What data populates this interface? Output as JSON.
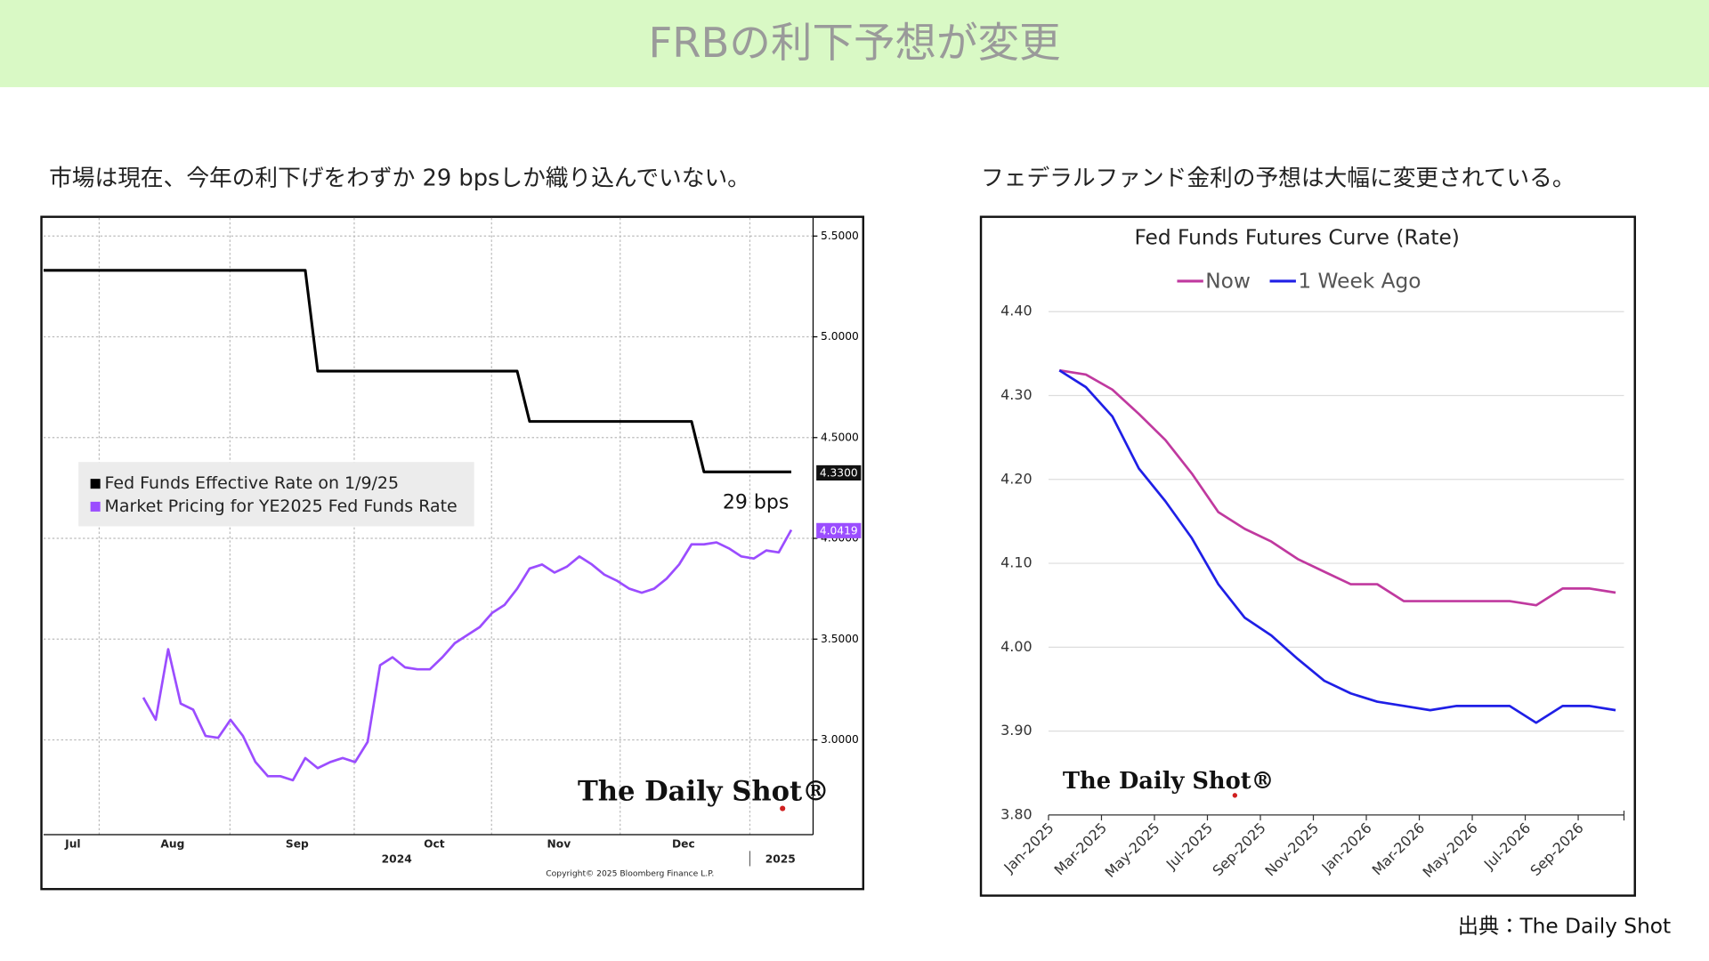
{
  "title": "FRBの利下予想が変更",
  "subtitles": [
    "市場は現在、今年の利下げをわずか 29 bpsしか織り込んでいない。",
    "フェデラルファンド金利の予想は大幅に変更されている。"
  ],
  "source": "出典：The Daily Shot",
  "chart_data": [
    {
      "type": "line",
      "categories": [
        null,
        null,
        "Jul",
        null,
        null,
        null,
        null,
        null,
        null,
        null,
        "Aug",
        null,
        null,
        null,
        null,
        null,
        null,
        null,
        null,
        null,
        "Sep",
        null,
        null,
        null,
        null,
        null,
        null,
        null,
        null,
        null,
        null,
        "Oct",
        null,
        null,
        null,
        null,
        null,
        null,
        null,
        null,
        null,
        "Nov",
        null,
        null,
        null,
        null,
        null,
        null,
        null,
        null,
        null,
        "Dec",
        null,
        null,
        null,
        null,
        null,
        null,
        null,
        null,
        null
      ],
      "series": [
        {
          "name": "Fed Funds Effective Rate on 1/9/25",
          "color": "#000000",
          "values": [
            5.33,
            5.33,
            5.33,
            5.33,
            5.33,
            5.33,
            5.33,
            5.33,
            5.33,
            5.33,
            5.33,
            5.33,
            5.33,
            5.33,
            5.33,
            5.33,
            5.33,
            5.33,
            5.33,
            5.33,
            5.33,
            5.33,
            4.83,
            4.83,
            4.83,
            4.83,
            4.83,
            4.83,
            4.83,
            4.83,
            4.83,
            4.83,
            4.83,
            4.83,
            4.83,
            4.83,
            4.83,
            4.83,
            4.83,
            4.58,
            4.58,
            4.58,
            4.58,
            4.58,
            4.58,
            4.58,
            4.58,
            4.58,
            4.58,
            4.58,
            4.58,
            4.58,
            4.58,
            4.33,
            4.33,
            4.33,
            4.33,
            4.33,
            4.33,
            4.33,
            4.33
          ]
        },
        {
          "name": "Market Pricing for YE2025 Fed Funds Rate",
          "color": "#9b4dff",
          "values": [
            null,
            null,
            null,
            null,
            null,
            null,
            null,
            null,
            3.21,
            3.1,
            3.45,
            3.18,
            3.15,
            3.02,
            3.01,
            3.1,
            3.02,
            2.89,
            2.82,
            2.82,
            2.8,
            2.91,
            2.86,
            2.89,
            2.91,
            2.89,
            2.99,
            3.37,
            3.41,
            3.36,
            3.35,
            3.35,
            3.41,
            3.48,
            3.52,
            3.56,
            3.63,
            3.67,
            3.75,
            3.85,
            3.87,
            3.83,
            3.86,
            3.91,
            3.87,
            3.82,
            3.79,
            3.75,
            3.73,
            3.75,
            3.8,
            3.87,
            3.97,
            3.97,
            3.98,
            3.95,
            3.91,
            3.9,
            3.94,
            3.93,
            4.0419
          ]
        }
      ],
      "ylim": [
        2.53,
        5.59
      ],
      "yticks": [
        {
          "value": 3.0,
          "label": "3.0000"
        },
        {
          "value": 3.5,
          "label": "3.5000"
        },
        {
          "value": 4.0,
          "label": "4.0000"
        },
        {
          "value": 4.5,
          "label": "4.5000"
        },
        {
          "value": 5.0,
          "label": "5.0000"
        },
        {
          "value": 5.5,
          "label": "5.5000"
        }
      ],
      "y_axis_side": "right",
      "grid": true,
      "annotations": [
        "29 bps",
        "4.3300",
        "4.0419",
        "2024",
        "2025",
        "Copyright© 2025 Bloomberg Finance L.P.",
        "The Daily Shot®"
      ]
    },
    {
      "type": "line",
      "title": "Fed Funds Futures Curve (Rate)",
      "categories": [
        "Jan-2025",
        null,
        "Mar-2025",
        null,
        "May-2025",
        null,
        "Jul-2025",
        null,
        "Sep-2025",
        null,
        "Nov-2025",
        null,
        "Jan-2026",
        null,
        "Mar-2026",
        null,
        "May-2026",
        null,
        "Jul-2026",
        null,
        "Sep-2026",
        null
      ],
      "series": [
        {
          "name": "Now",
          "color": "#c0399f",
          "values": [
            4.33,
            4.325,
            4.307,
            4.278,
            4.247,
            4.207,
            4.161,
            4.141,
            4.126,
            4.105,
            4.09,
            4.075,
            4.075,
            4.055,
            4.055,
            4.055,
            4.055,
            4.055,
            4.05,
            4.07,
            4.07,
            4.065
          ]
        },
        {
          "name": "1 Week Ago",
          "color": "#1f1fe6",
          "values": [
            4.33,
            4.31,
            4.275,
            4.213,
            4.174,
            4.13,
            4.075,
            4.035,
            4.014,
            3.986,
            3.96,
            3.945,
            3.935,
            3.93,
            3.925,
            3.93,
            3.93,
            3.93,
            3.91,
            3.93,
            3.93,
            3.925
          ]
        }
      ],
      "ylim": [
        3.8,
        4.4
      ],
      "yticks": [
        {
          "value": 3.8,
          "label": "3.80"
        },
        {
          "value": 3.9,
          "label": "3.90"
        },
        {
          "value": 4.0,
          "label": "4.00"
        },
        {
          "value": 4.1,
          "label": "4.10"
        },
        {
          "value": 4.2,
          "label": "4.20"
        },
        {
          "value": 4.3,
          "label": "4.30"
        },
        {
          "value": 4.4,
          "label": "4.40"
        }
      ],
      "legend": "top",
      "grid": true,
      "annotations": [
        "The Daily Shot®"
      ]
    }
  ]
}
